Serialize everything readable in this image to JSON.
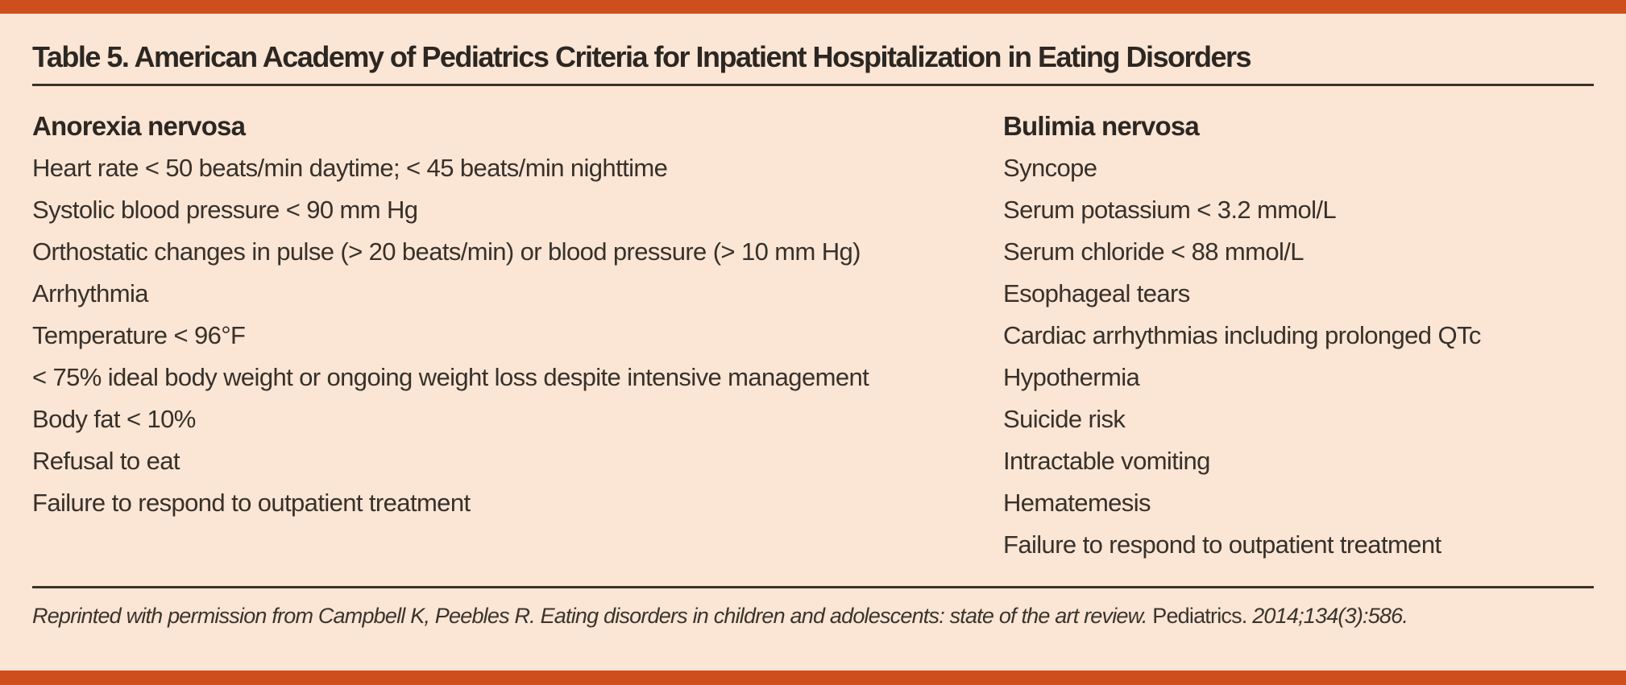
{
  "colors": {
    "accent_bar": "#CE4E1D",
    "background": "#FBE5D4",
    "text": "#37312B",
    "rule": "#3B332A"
  },
  "table": {
    "title": "Table 5. American Academy of Pediatrics Criteria for Inpatient Hospitalization in Eating Disorders",
    "columns": [
      {
        "header": "Anorexia nervosa",
        "items": [
          "Heart rate < 50 beats/min daytime; < 45 beats/min nighttime",
          "Systolic blood pressure < 90 mm Hg",
          "Orthostatic changes in pulse (> 20 beats/min) or blood pressure (> 10 mm Hg)",
          "Arrhythmia",
          "Temperature < 96°F",
          "< 75% ideal body weight or ongoing weight loss despite intensive management",
          "Body fat < 10%",
          "Refusal to eat",
          "Failure to respond to outpatient treatment"
        ]
      },
      {
        "header": "Bulimia nervosa",
        "items": [
          "Syncope",
          "Serum potassium < 3.2 mmol/L",
          "Serum chloride < 88 mmol/L",
          "Esophageal tears",
          "Cardiac arrhythmias including prolonged QTc",
          "Hypothermia",
          "Suicide risk",
          "Intractable vomiting",
          "Hematemesis",
          "Failure to respond to outpatient treatment"
        ]
      }
    ]
  },
  "footer": {
    "credit_main": "Reprinted with permission from Campbell K, Peebles R. Eating disorders in children and adolescents: state of the art review.",
    "journal_name": "Pediatrics.",
    "citation": "2014;134(3):586."
  }
}
